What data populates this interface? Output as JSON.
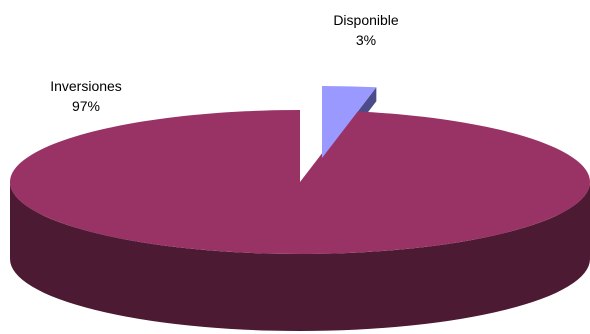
{
  "chart_data": {
    "type": "pie",
    "style": "3d-exploded",
    "slices": [
      {
        "label": "Inversiones",
        "value": 97,
        "value_label": "97%",
        "color": "#993366"
      },
      {
        "label": "Disponible",
        "value": 3,
        "value_label": "3%",
        "color": "#9999ff"
      }
    ],
    "colors": {
      "inversiones_top": "#993366",
      "inversiones_side": "#4d1a33",
      "disponible_top": "#9999ff",
      "disponible_side": "#4b4b8a"
    }
  }
}
